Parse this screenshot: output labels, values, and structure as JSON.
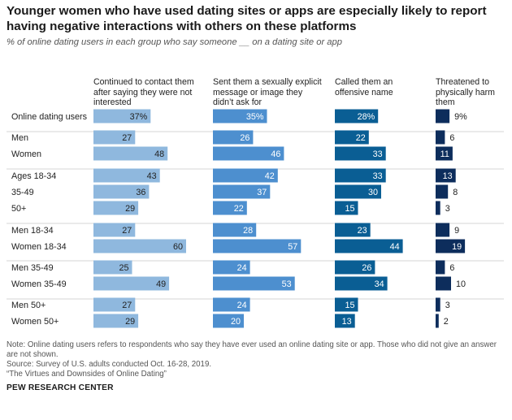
{
  "title": "Younger women who have used dating sites or apps are especially likely to report having negative interactions with others on these platforms",
  "subtitle": "% of online dating users in each group who say someone __ on a dating site or app",
  "notes": [
    "Note: Online dating users refers to respondents who say they have ever used an online dating site or app. Those who did not give an answer are not shown.",
    "Source: Survey of U.S. adults conducted Oct. 16-28, 2019.",
    "“The Virtues and Downsides of Online Dating”"
  ],
  "source_org": "PEW RESEARCH CENTER",
  "chart_data": {
    "type": "bar",
    "orientation": "horizontal",
    "categories": [
      "Online dating users",
      "Men",
      "Women",
      "Ages 18-34",
      "35-49",
      "50+",
      "Men 18-34",
      "Women 18-34",
      "Men 35-49",
      "Women 35-49",
      "Men 50+",
      "Women 50+"
    ],
    "groups": [
      [
        0
      ],
      [
        1,
        2
      ],
      [
        3,
        4,
        5
      ],
      [
        6,
        7
      ],
      [
        8,
        9
      ],
      [
        10,
        11
      ]
    ],
    "series": [
      {
        "name": "Continued to contact them after saying they were not interested",
        "color": "#8fb8de",
        "values": [
          37,
          27,
          48,
          43,
          36,
          29,
          27,
          60,
          25,
          49,
          27,
          29
        ]
      },
      {
        "name": "Sent them a sexually explicit message or image they didn’t ask for",
        "color": "#4d8fcf",
        "values": [
          35,
          26,
          46,
          42,
          37,
          22,
          28,
          57,
          24,
          53,
          24,
          20
        ]
      },
      {
        "name": "Called them an offensive name",
        "color": "#0a5e94",
        "values": [
          28,
          22,
          33,
          33,
          30,
          15,
          23,
          44,
          26,
          34,
          15,
          13
        ]
      },
      {
        "name": "Threatened to physically harm them",
        "color": "#0d2d5c",
        "values": [
          9,
          6,
          11,
          13,
          8,
          3,
          9,
          19,
          6,
          10,
          3,
          2
        ]
      }
    ],
    "first_row_percent": true,
    "grid": false,
    "legend": "none"
  }
}
